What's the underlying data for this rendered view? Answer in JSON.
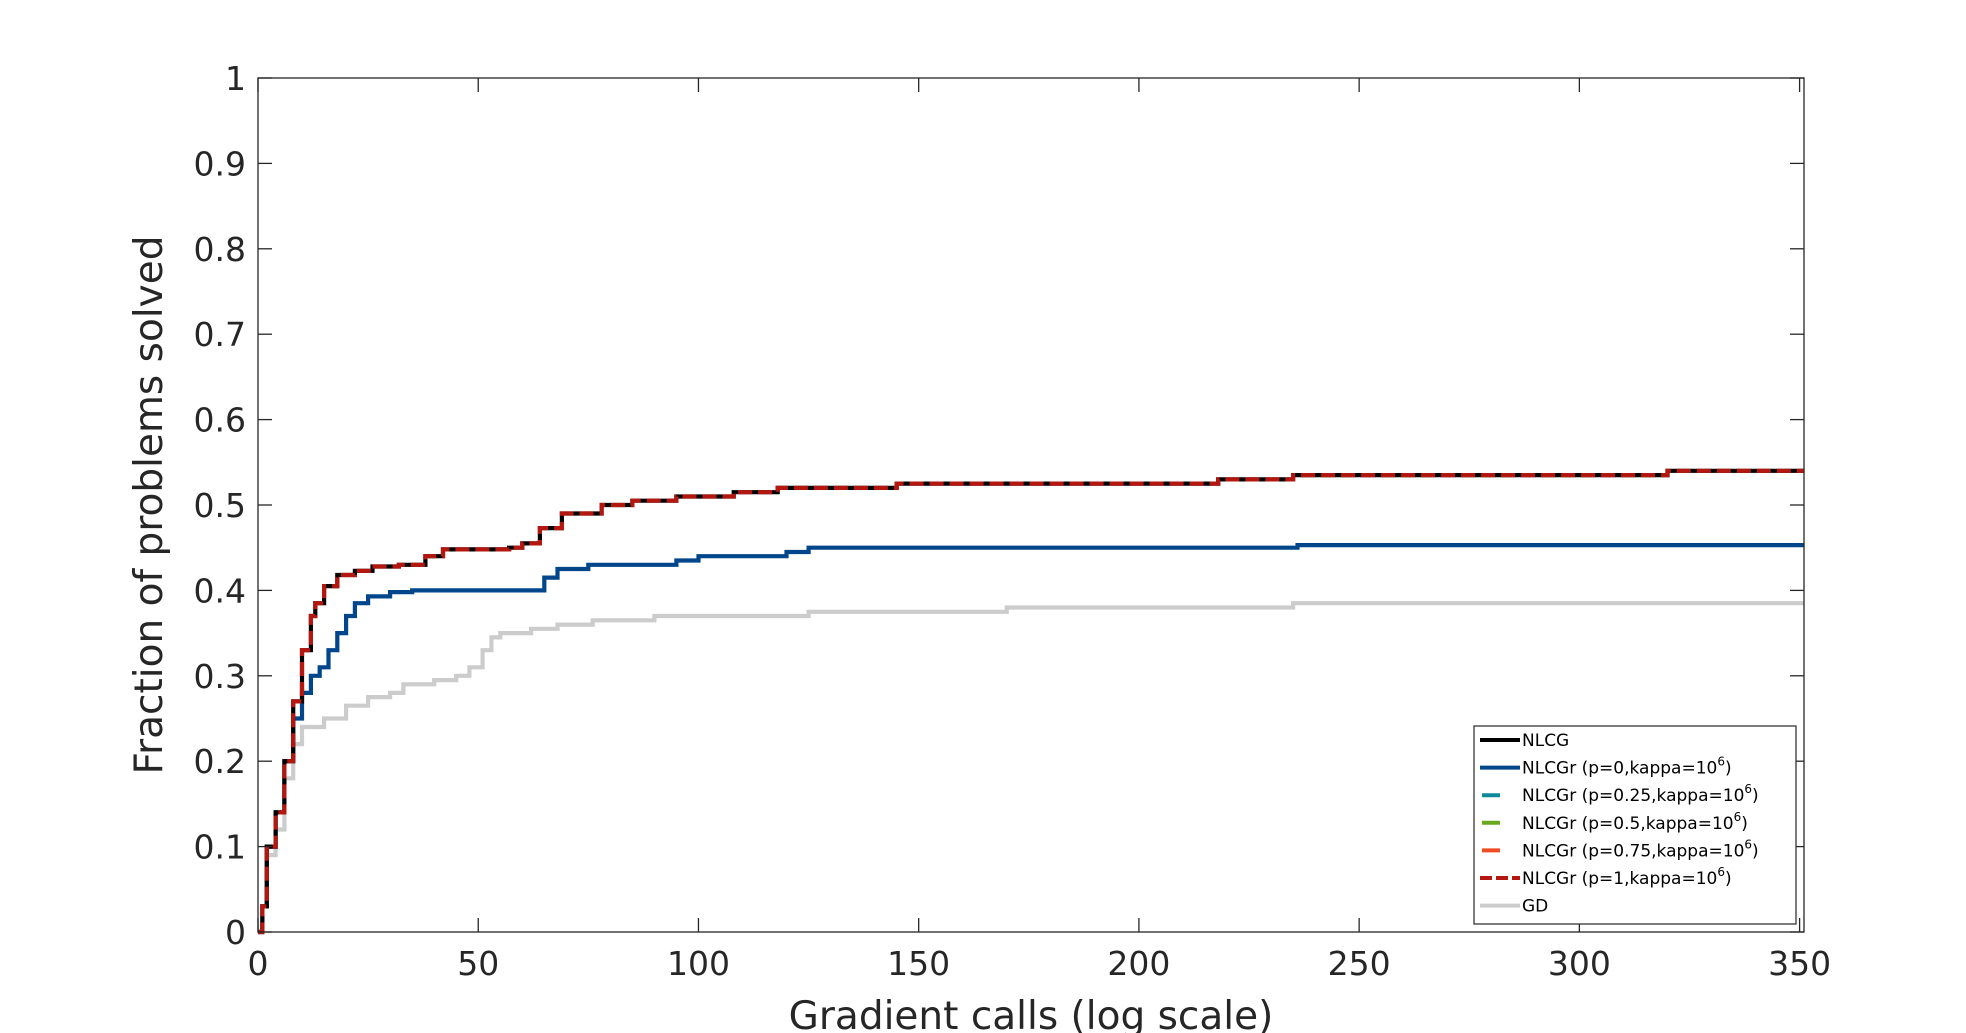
{
  "chart_data": {
    "type": "line",
    "title": "",
    "xlabel": "Gradient calls (log scale)",
    "ylabel": "Fraction of problems solved",
    "xlim": [
      0,
      351
    ],
    "ylim": [
      0,
      1
    ],
    "x_ticks": [
      0,
      50,
      100,
      150,
      200,
      250,
      300,
      350
    ],
    "y_ticks": [
      0,
      0.1,
      0.2,
      0.3,
      0.4,
      0.5,
      0.6,
      0.7,
      0.8,
      0.9,
      1
    ],
    "grid": false,
    "legend_position": "bottom-right",
    "series": [
      {
        "name": "NLCG",
        "label_main": "NLCG",
        "label_sup": "",
        "label_tail": "",
        "color": "#000000",
        "dash": "solid",
        "points": [
          [
            0,
            0
          ],
          [
            1,
            0.03
          ],
          [
            2,
            0.1
          ],
          [
            4,
            0.14
          ],
          [
            6,
            0.2
          ],
          [
            8,
            0.27
          ],
          [
            10,
            0.33
          ],
          [
            12,
            0.37
          ],
          [
            13,
            0.385
          ],
          [
            15,
            0.405
          ],
          [
            18,
            0.418
          ],
          [
            22,
            0.423
          ],
          [
            26,
            0.428
          ],
          [
            32,
            0.43
          ],
          [
            38,
            0.44
          ],
          [
            42,
            0.448
          ],
          [
            50,
            0.448
          ],
          [
            57,
            0.45
          ],
          [
            60,
            0.455
          ],
          [
            64,
            0.473
          ],
          [
            69,
            0.49
          ],
          [
            78,
            0.5
          ],
          [
            85,
            0.505
          ],
          [
            95,
            0.51
          ],
          [
            108,
            0.515
          ],
          [
            118,
            0.52
          ],
          [
            145,
            0.525
          ],
          [
            170,
            0.525
          ],
          [
            218,
            0.53
          ],
          [
            235,
            0.535
          ],
          [
            320,
            0.54
          ],
          [
            351,
            0.54
          ]
        ]
      },
      {
        "name": "NLCGr (p=0,kappa=10^6)",
        "label_main": "NLCGr (p=0,kappa=10",
        "label_sup": "6",
        "label_tail": ")",
        "color": "#00468b",
        "dash": "solid",
        "points": [
          [
            0,
            0
          ],
          [
            1,
            0.03
          ],
          [
            2,
            0.1
          ],
          [
            4,
            0.14
          ],
          [
            6,
            0.2
          ],
          [
            8,
            0.25
          ],
          [
            10,
            0.28
          ],
          [
            12,
            0.3
          ],
          [
            14,
            0.31
          ],
          [
            16,
            0.33
          ],
          [
            18,
            0.35
          ],
          [
            20,
            0.37
          ],
          [
            22,
            0.385
          ],
          [
            25,
            0.393
          ],
          [
            30,
            0.398
          ],
          [
            35,
            0.4
          ],
          [
            62,
            0.4
          ],
          [
            65,
            0.415
          ],
          [
            68,
            0.425
          ],
          [
            75,
            0.43
          ],
          [
            90,
            0.43
          ],
          [
            95,
            0.435
          ],
          [
            100,
            0.44
          ],
          [
            120,
            0.445
          ],
          [
            125,
            0.45
          ],
          [
            235,
            0.45
          ],
          [
            236,
            0.453
          ],
          [
            351,
            0.453
          ]
        ]
      },
      {
        "name": "NLCGr (p=0.25,kappa=10^6)",
        "label_main": "NLCGr (p=0.25,kappa=10",
        "label_sup": "6",
        "label_tail": ")",
        "color": "#0f8a9b",
        "dash": "dashed",
        "points": []
      },
      {
        "name": "NLCGr (p=0.5,kappa=10^6)",
        "label_main": "NLCGr (p=0.5,kappa=10",
        "label_sup": "6",
        "label_tail": ")",
        "color": "#6aa820",
        "dash": "dashed",
        "points": []
      },
      {
        "name": "NLCGr (p=0.75,kappa=10^6)",
        "label_main": "NLCGr (p=0.75,kappa=10",
        "label_sup": "6",
        "label_tail": ")",
        "color": "#ef4c23",
        "dash": "dashed",
        "points": []
      },
      {
        "name": "NLCGr (p=1,kappa=10^6)",
        "label_main": "NLCGr (p=1,kappa=10",
        "label_sup": "6",
        "label_tail": ")",
        "color": "#b3170f",
        "dash": "dashed",
        "points": [
          [
            0,
            0
          ],
          [
            1,
            0.03
          ],
          [
            2,
            0.1
          ],
          [
            4,
            0.14
          ],
          [
            6,
            0.2
          ],
          [
            8,
            0.27
          ],
          [
            10,
            0.33
          ],
          [
            12,
            0.37
          ],
          [
            13,
            0.385
          ],
          [
            15,
            0.405
          ],
          [
            18,
            0.418
          ],
          [
            22,
            0.423
          ],
          [
            26,
            0.428
          ],
          [
            32,
            0.43
          ],
          [
            38,
            0.44
          ],
          [
            42,
            0.448
          ],
          [
            50,
            0.448
          ],
          [
            57,
            0.45
          ],
          [
            60,
            0.455
          ],
          [
            64,
            0.473
          ],
          [
            69,
            0.49
          ],
          [
            78,
            0.5
          ],
          [
            85,
            0.505
          ],
          [
            95,
            0.51
          ],
          [
            108,
            0.515
          ],
          [
            118,
            0.52
          ],
          [
            145,
            0.525
          ],
          [
            170,
            0.525
          ],
          [
            218,
            0.53
          ],
          [
            235,
            0.535
          ],
          [
            320,
            0.54
          ],
          [
            351,
            0.54
          ]
        ]
      },
      {
        "name": "GD",
        "label_main": "GD",
        "label_sup": "",
        "label_tail": "",
        "color": "#cccccc",
        "dash": "solid",
        "points": [
          [
            0,
            0
          ],
          [
            1,
            0.03
          ],
          [
            2,
            0.09
          ],
          [
            4,
            0.12
          ],
          [
            6,
            0.18
          ],
          [
            8,
            0.22
          ],
          [
            10,
            0.24
          ],
          [
            15,
            0.25
          ],
          [
            20,
            0.265
          ],
          [
            25,
            0.275
          ],
          [
            30,
            0.28
          ],
          [
            33,
            0.29
          ],
          [
            40,
            0.295
          ],
          [
            45,
            0.3
          ],
          [
            48,
            0.31
          ],
          [
            51,
            0.33
          ],
          [
            53,
            0.345
          ],
          [
            55,
            0.35
          ],
          [
            62,
            0.355
          ],
          [
            68,
            0.36
          ],
          [
            76,
            0.365
          ],
          [
            90,
            0.37
          ],
          [
            125,
            0.375
          ],
          [
            170,
            0.38
          ],
          [
            235,
            0.385
          ],
          [
            351,
            0.385
          ]
        ]
      }
    ]
  }
}
